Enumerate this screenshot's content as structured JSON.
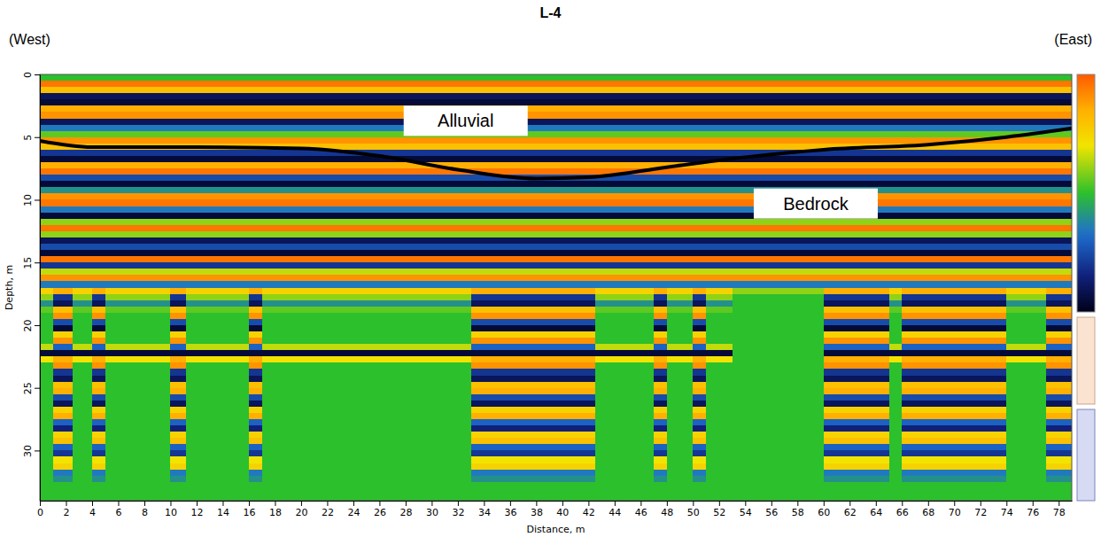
{
  "chart_data": {
    "type": "heatmap",
    "title": "L-4",
    "x_label": "Distance, m",
    "y_label": "Depth, m",
    "xlim": [
      0,
      79
    ],
    "xticks": [
      0,
      2,
      4,
      6,
      8,
      10,
      12,
      14,
      16,
      18,
      20,
      22,
      24,
      26,
      28,
      30,
      32,
      34,
      36,
      38,
      40,
      42,
      44,
      46,
      48,
      50,
      52,
      54,
      56,
      58,
      60,
      62,
      64,
      66,
      68,
      70,
      72,
      74,
      76,
      78
    ],
    "ylim": [
      0,
      34
    ],
    "yticks": [
      0,
      5,
      10,
      15,
      20,
      25,
      30
    ],
    "annotations": [
      {
        "text": "(West)"
      },
      {
        "text": "(East)"
      },
      {
        "text": "Alluvial",
        "x": 32.6,
        "y": 3.7
      },
      {
        "text": "Bedrock",
        "x": 59.4,
        "y": 10.3
      }
    ],
    "colorbar": {
      "range": [
        -1,
        1
      ]
    },
    "column_edges": [
      0,
      1,
      2.5,
      4,
      5,
      10,
      11.2,
      16,
      17,
      33,
      42.5,
      47,
      48,
      50,
      51,
      53,
      60,
      65,
      66,
      74,
      77,
      79
    ],
    "column_profile": [
      0,
      1,
      0,
      1,
      0,
      1,
      0,
      1,
      0,
      1,
      0,
      1,
      0,
      1,
      0,
      2,
      1,
      0,
      1,
      0,
      1
    ],
    "depth_edges": [
      0,
      0.5,
      1,
      1.5,
      2,
      2.5,
      3,
      3.5,
      4,
      4.5,
      5,
      5.5,
      6,
      6.5,
      7,
      7.5,
      8,
      8.5,
      9,
      9.5,
      10,
      10.5,
      11,
      11.5,
      12,
      12.5,
      13,
      13.5,
      14,
      14.5,
      15,
      15.5,
      16,
      16.5,
      17,
      17.5,
      18,
      18.5,
      19,
      19.5,
      20,
      20.5,
      21,
      21.5,
      22,
      22.5,
      23,
      23.5,
      24,
      24.5,
      25,
      25.5,
      26,
      26.5,
      27,
      27.5,
      28,
      28.5,
      29,
      29.5,
      30,
      30.5,
      31,
      31.5,
      32,
      32.5,
      33,
      33.5,
      34
    ],
    "profiles": [
      {
        "values": [
          0,
          0.9,
          0.6,
          -0.8,
          -0.9,
          0.7,
          0.8,
          -0.8,
          -0.3,
          0.1,
          0.8,
          0.6,
          -0.6,
          -0.9,
          0.7,
          0.9,
          -0.5,
          -0.9,
          -0.2,
          0.8,
          0.9,
          -0.3,
          -0.9,
          0.2,
          0.9,
          0.2,
          -0.8,
          -0.5,
          -0.9,
          0.9,
          -0.6,
          0.3,
          0.8,
          -0.3,
          0.5,
          0.2,
          -0.2,
          0.1,
          0,
          0,
          0,
          0,
          0,
          0.3,
          -0.9,
          0.4,
          0,
          0,
          0,
          0,
          0,
          0,
          0,
          0,
          0,
          0,
          0,
          0,
          0,
          0,
          0,
          0,
          0,
          0,
          0,
          0,
          0,
          0
        ]
      },
      {
        "values": [
          0,
          0.9,
          0.6,
          -0.8,
          -0.9,
          0.7,
          0.8,
          -0.8,
          -0.3,
          0.1,
          0.8,
          0.6,
          -0.6,
          -0.9,
          0.7,
          0.9,
          -0.5,
          -0.9,
          -0.2,
          0.8,
          0.9,
          -0.3,
          -0.9,
          0.2,
          0.9,
          0.2,
          -0.8,
          -0.5,
          -0.9,
          0.9,
          -0.6,
          0.3,
          0.8,
          -0.3,
          0.7,
          -0.6,
          -0.8,
          0.6,
          0.8,
          -0.5,
          -0.9,
          0.5,
          0.8,
          -0.4,
          -0.9,
          0.7,
          0.8,
          -0.6,
          -0.8,
          0.6,
          0.7,
          -0.5,
          -0.8,
          0.5,
          0.7,
          -0.4,
          -0.7,
          0.5,
          0.6,
          -0.4,
          -0.6,
          0.4,
          0.5,
          -0.3,
          -0.2,
          0,
          0,
          0
        ]
      },
      {
        "values": [
          0,
          0.9,
          0.6,
          -0.8,
          -0.9,
          0.7,
          0.8,
          -0.8,
          -0.3,
          0.1,
          0.8,
          0.6,
          -0.6,
          -0.9,
          0.7,
          0.9,
          -0.5,
          -0.9,
          -0.2,
          0.8,
          0.9,
          -0.3,
          -0.9,
          0.2,
          0.9,
          0.2,
          -0.8,
          -0.5,
          -0.9,
          0.9,
          -0.6,
          0.3,
          0.8,
          -0.3,
          0.2,
          0,
          0,
          0,
          0,
          0,
          0,
          0,
          0,
          0,
          0,
          0,
          0,
          0,
          0,
          0,
          0,
          0,
          0,
          0,
          0,
          0,
          0,
          0,
          0,
          0,
          0,
          0,
          0,
          0,
          0,
          0,
          0,
          0
        ]
      }
    ],
    "series": [
      {
        "type": "line",
        "color": "#000000",
        "x": [
          0,
          4,
          12,
          20,
          26,
          32,
          38,
          42,
          48,
          54,
          60,
          68,
          74,
          79
        ],
        "values": [
          5.3,
          5.8,
          5.8,
          5.9,
          6.5,
          7.6,
          8.3,
          8.2,
          7.4,
          6.6,
          6.0,
          5.6,
          5.0,
          4.3
        ]
      }
    ]
  }
}
